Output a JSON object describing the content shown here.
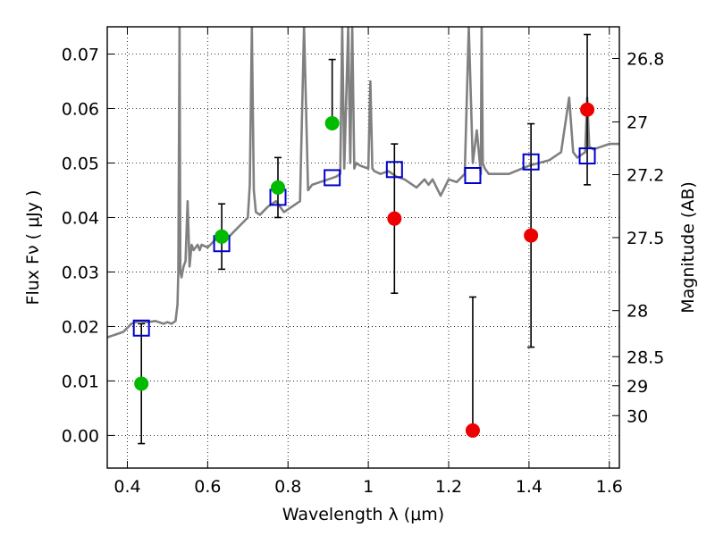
{
  "chart_data": {
    "type": "scatter",
    "xlabel": "Wavelength  λ (μm)",
    "ylabel": "Flux  Fν  ( μJy )",
    "y2label": "Magnitude (AB)",
    "xlim": [
      0.35,
      1.625
    ],
    "ylim": [
      -0.006,
      0.075
    ],
    "grid": true,
    "x_ticks": [
      0.4,
      0.6,
      0.8,
      1.0,
      1.2,
      1.4,
      1.6
    ],
    "x_tick_labels": [
      "0.4",
      "0.6",
      "0.8",
      "1",
      "1.2",
      "1.4",
      "1.6"
    ],
    "y_ticks": [
      0.0,
      0.01,
      0.02,
      0.03,
      0.04,
      0.05,
      0.06,
      0.07
    ],
    "y_tick_labels": [
      "0.00",
      "0.01",
      "0.02",
      "0.03",
      "0.04",
      "0.05",
      "0.06",
      "0.07"
    ],
    "y2_ticks": [
      26.8,
      27.0,
      27.2,
      27.5,
      28.0,
      28.5,
      29.0,
      30.0
    ],
    "y2_tick_labels": [
      "26.8",
      "27",
      "27.2",
      "27.5",
      "28",
      "28.5",
      "29",
      "30"
    ],
    "colors": {
      "model": "#808080",
      "synthetic": "#0000cc",
      "detection": "#00bb00",
      "non_detection": "#ee0000",
      "errorbar": "#000000"
    },
    "model_spectrum": {
      "x": [
        0.35,
        0.37,
        0.39,
        0.41,
        0.43,
        0.45,
        0.47,
        0.49,
        0.5,
        0.51,
        0.52,
        0.525,
        0.527,
        0.53,
        0.532,
        0.535,
        0.54,
        0.545,
        0.55,
        0.555,
        0.56,
        0.565,
        0.575,
        0.58,
        0.585,
        0.6,
        0.62,
        0.64,
        0.66,
        0.68,
        0.7,
        0.705,
        0.71,
        0.715,
        0.72,
        0.73,
        0.75,
        0.77,
        0.79,
        0.81,
        0.83,
        0.84,
        0.85,
        0.86,
        0.88,
        0.9,
        0.92,
        0.93,
        0.935,
        0.94,
        0.95,
        0.955,
        0.96,
        0.965,
        0.97,
        0.98,
        1.0,
        1.005,
        1.01,
        1.015,
        1.03,
        1.05,
        1.07,
        1.09,
        1.1,
        1.12,
        1.14,
        1.15,
        1.16,
        1.18,
        1.2,
        1.22,
        1.24,
        1.25,
        1.26,
        1.27,
        1.28,
        1.282,
        1.285,
        1.29,
        1.3,
        1.32,
        1.35,
        1.4,
        1.45,
        1.48,
        1.5,
        1.51,
        1.52,
        1.54,
        1.545,
        1.55,
        1.56,
        1.58,
        1.6,
        1.625
      ],
      "y": [
        0.018,
        0.0185,
        0.019,
        0.0205,
        0.021,
        0.0208,
        0.021,
        0.0205,
        0.0208,
        0.0205,
        0.021,
        0.024,
        0.03,
        0.075,
        0.03,
        0.029,
        0.031,
        0.032,
        0.043,
        0.031,
        0.035,
        0.034,
        0.035,
        0.034,
        0.035,
        0.0345,
        0.036,
        0.0355,
        0.037,
        0.0385,
        0.04,
        0.046,
        0.075,
        0.045,
        0.041,
        0.0405,
        0.042,
        0.043,
        0.041,
        0.042,
        0.043,
        0.075,
        0.045,
        0.046,
        0.0465,
        0.047,
        0.0475,
        0.048,
        0.075,
        0.049,
        0.075,
        0.05,
        0.075,
        0.049,
        0.05,
        0.0495,
        0.049,
        0.065,
        0.049,
        0.0485,
        0.048,
        0.0485,
        0.0475,
        0.047,
        0.0465,
        0.0455,
        0.047,
        0.046,
        0.047,
        0.044,
        0.047,
        0.0465,
        0.048,
        0.075,
        0.05,
        0.056,
        0.048,
        0.075,
        0.05,
        0.049,
        0.048,
        0.048,
        0.048,
        0.0495,
        0.0505,
        0.052,
        0.062,
        0.052,
        0.051,
        0.052,
        0.062,
        0.053,
        0.0525,
        0.053,
        0.0535,
        0.0535
      ]
    },
    "series": [
      {
        "marker": "square",
        "x": [
          0.435,
          0.635,
          0.775,
          0.91,
          1.065,
          1.26,
          1.405,
          1.545
        ],
        "values": [
          0.0197,
          0.0352,
          0.0437,
          0.0473,
          0.0488,
          0.0477,
          0.0502,
          0.0513
        ]
      },
      {
        "marker": "circle",
        "x": [
          0.435,
          0.635,
          0.775,
          0.91
        ],
        "values": [
          0.0095,
          0.0365,
          0.0455,
          0.0573
        ],
        "err_low": [
          0.011,
          0.006,
          0.0055,
          0.0
        ],
        "err_high": [
          0.011,
          0.006,
          0.0055,
          0.0117
        ]
      },
      {
        "marker": "circle",
        "x": [
          1.065,
          1.26,
          1.405,
          1.545
        ],
        "values": [
          0.0398,
          0.0009,
          0.0367,
          0.0598
        ],
        "err_low": [
          0.0137,
          0.0,
          0.0205,
          0.0138
        ],
        "err_high": [
          0.0137,
          0.0245,
          0.0205,
          0.0138
        ]
      }
    ]
  }
}
